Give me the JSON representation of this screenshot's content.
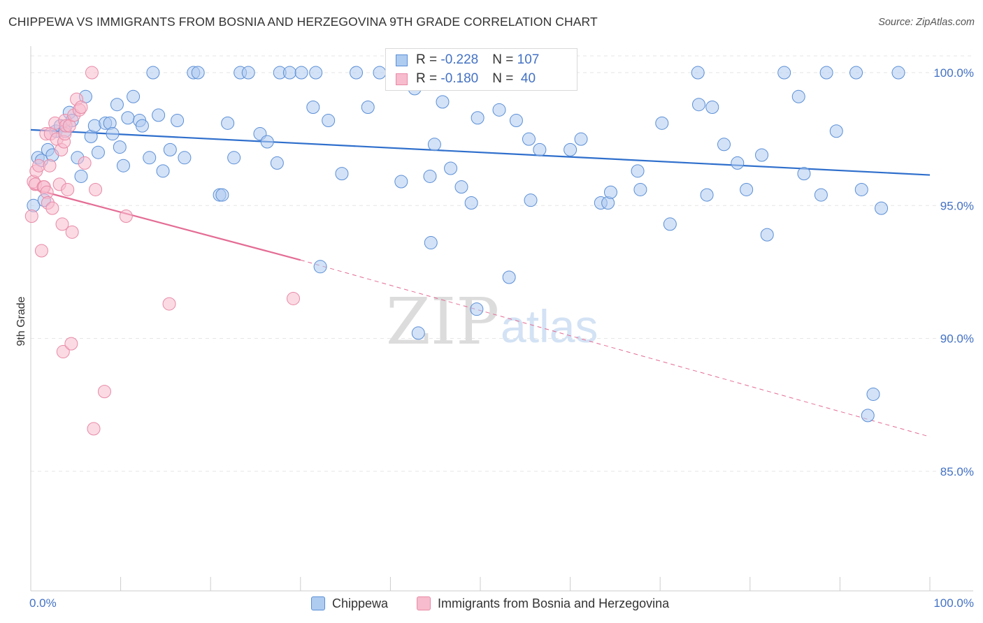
{
  "title": "CHIPPEWA VS IMMIGRANTS FROM BOSNIA AND HERZEGOVINA 9TH GRADE CORRELATION CHART",
  "source": "Source: ZipAtlas.com",
  "watermark": {
    "zip": "ZIP",
    "atlas": "atlas"
  },
  "legend_stats": [
    {
      "r_label": "R = ",
      "r_value": "-0.228",
      "n_label": "N = ",
      "n_value": "107",
      "color": "#aecbf0",
      "border": "#5b8fd6"
    },
    {
      "r_label": "R = ",
      "r_value": "-0.180",
      "n_label": "N = ",
      "n_value": " 40",
      "color": "#f7bccd",
      "border": "#e88aa6"
    }
  ],
  "chart_data": {
    "type": "scatter",
    "title": "CHIPPEWA VS IMMIGRANTS FROM BOSNIA AND HERZEGOVINA 9TH GRADE CORRELATION CHART",
    "xlabel": "",
    "ylabel": "9th Grade",
    "xlim": [
      0,
      100
    ],
    "ylim": [
      80.5,
      101.0
    ],
    "x_tick_labels": [
      "0.0%",
      "100.0%"
    ],
    "y_ticks": [
      85.0,
      90.0,
      95.0,
      100.0
    ],
    "y_tick_labels": [
      "85.0%",
      "90.0%",
      "95.0%",
      "100.0%"
    ],
    "grid": true,
    "legend_position": "top-center",
    "series": [
      {
        "name": "Chippewa",
        "color": "#aecbf0",
        "edge": "#5b8fd6",
        "trend": {
          "x": [
            0,
            100
          ],
          "y": [
            97.85,
            96.15
          ],
          "color": "#2f6fcc"
        },
        "points": [
          [
            0.3,
            95.0
          ],
          [
            0.8,
            96.8
          ],
          [
            1.2,
            96.7
          ],
          [
            1.5,
            95.2
          ],
          [
            1.9,
            97.1
          ],
          [
            2.4,
            96.9
          ],
          [
            2.8,
            97.8
          ],
          [
            3.3,
            98.0
          ],
          [
            3.8,
            97.8
          ],
          [
            4.3,
            98.5
          ],
          [
            4.6,
            98.2
          ],
          [
            5.2,
            96.8
          ],
          [
            5.6,
            96.1
          ],
          [
            6.1,
            99.1
          ],
          [
            6.7,
            97.6
          ],
          [
            7.1,
            98.0
          ],
          [
            7.5,
            97.0
          ],
          [
            8.3,
            98.1
          ],
          [
            8.8,
            98.1
          ],
          [
            9.1,
            97.7
          ],
          [
            9.6,
            98.8
          ],
          [
            9.9,
            97.2
          ],
          [
            10.3,
            96.5
          ],
          [
            10.8,
            98.3
          ],
          [
            11.4,
            99.1
          ],
          [
            12.1,
            98.2
          ],
          [
            12.4,
            98.0
          ],
          [
            13.2,
            96.8
          ],
          [
            13.6,
            100.0
          ],
          [
            14.2,
            98.4
          ],
          [
            14.7,
            96.3
          ],
          [
            15.5,
            97.1
          ],
          [
            16.3,
            98.2
          ],
          [
            17.1,
            96.8
          ],
          [
            18.1,
            100.0
          ],
          [
            18.6,
            100.0
          ],
          [
            21.0,
            95.4
          ],
          [
            21.3,
            95.4
          ],
          [
            21.9,
            98.1
          ],
          [
            22.6,
            96.8
          ],
          [
            23.3,
            100.0
          ],
          [
            24.2,
            100.0
          ],
          [
            25.5,
            97.7
          ],
          [
            26.3,
            97.4
          ],
          [
            27.4,
            96.6
          ],
          [
            27.7,
            100.0
          ],
          [
            28.8,
            100.0
          ],
          [
            30.1,
            100.0
          ],
          [
            31.4,
            98.7
          ],
          [
            31.7,
            100.0
          ],
          [
            32.2,
            92.7
          ],
          [
            33.1,
            98.2
          ],
          [
            34.6,
            96.2
          ],
          [
            36.2,
            100.0
          ],
          [
            37.5,
            98.7
          ],
          [
            38.8,
            100.0
          ],
          [
            41.2,
            95.9
          ],
          [
            42.3,
            100.0
          ],
          [
            42.7,
            99.4
          ],
          [
            43.1,
            90.2
          ],
          [
            44.4,
            96.1
          ],
          [
            44.5,
            93.6
          ],
          [
            44.9,
            97.3
          ],
          [
            45.8,
            98.9
          ],
          [
            46.7,
            96.4
          ],
          [
            47.9,
            95.7
          ],
          [
            49.0,
            95.1
          ],
          [
            49.7,
            98.3
          ],
          [
            49.6,
            91.1
          ],
          [
            51.6,
            99.9
          ],
          [
            52.1,
            98.6
          ],
          [
            53.2,
            92.3
          ],
          [
            54.0,
            98.2
          ],
          [
            55.4,
            97.5
          ],
          [
            55.6,
            95.2
          ],
          [
            56.6,
            97.1
          ],
          [
            58.1,
            100.0
          ],
          [
            60.0,
            97.1
          ],
          [
            61.2,
            97.5
          ],
          [
            63.4,
            95.1
          ],
          [
            64.2,
            95.1
          ],
          [
            64.5,
            95.5
          ],
          [
            67.5,
            96.3
          ],
          [
            67.8,
            95.6
          ],
          [
            70.2,
            98.1
          ],
          [
            71.1,
            94.3
          ],
          [
            74.2,
            100.0
          ],
          [
            74.3,
            98.8
          ],
          [
            75.2,
            95.4
          ],
          [
            75.8,
            98.7
          ],
          [
            77.1,
            97.3
          ],
          [
            78.6,
            96.6
          ],
          [
            79.6,
            95.6
          ],
          [
            81.3,
            96.9
          ],
          [
            81.9,
            93.9
          ],
          [
            83.8,
            100.0
          ],
          [
            85.4,
            99.1
          ],
          [
            86.0,
            96.2
          ],
          [
            87.9,
            95.4
          ],
          [
            88.5,
            100.0
          ],
          [
            89.6,
            97.8
          ],
          [
            91.8,
            100.0
          ],
          [
            92.4,
            95.6
          ],
          [
            93.1,
            87.1
          ],
          [
            93.7,
            87.9
          ],
          [
            94.6,
            94.9
          ],
          [
            96.5,
            100.0
          ]
        ]
      },
      {
        "name": "Immigrants from Bosnia and Herzegovina",
        "color": "#f7bccd",
        "edge": "#e88aa6",
        "trend": {
          "x": [
            0,
            30
          ],
          "y": [
            95.65,
            92.95
          ],
          "color": "#e46c95"
        },
        "trend_extension": {
          "x": [
            30,
            100
          ],
          "y": [
            92.95,
            86.3
          ]
        },
        "points": [
          [
            0.1,
            94.6
          ],
          [
            0.3,
            95.9
          ],
          [
            0.5,
            95.8
          ],
          [
            0.6,
            96.3
          ],
          [
            0.9,
            96.5
          ],
          [
            1.2,
            93.3
          ],
          [
            1.4,
            95.7
          ],
          [
            1.5,
            95.7
          ],
          [
            1.7,
            97.7
          ],
          [
            1.8,
            95.5
          ],
          [
            1.9,
            95.1
          ],
          [
            2.1,
            96.5
          ],
          [
            2.2,
            97.7
          ],
          [
            2.4,
            94.9
          ],
          [
            2.7,
            98.1
          ],
          [
            2.9,
            97.5
          ],
          [
            3.2,
            95.8
          ],
          [
            3.4,
            97.1
          ],
          [
            3.5,
            94.3
          ],
          [
            3.7,
            97.4
          ],
          [
            3.8,
            98.2
          ],
          [
            3.6,
            89.5
          ],
          [
            3.8,
            97.7
          ],
          [
            3.9,
            98.0
          ],
          [
            4.1,
            95.6
          ],
          [
            4.3,
            98.0
          ],
          [
            4.5,
            89.8
          ],
          [
            4.6,
            94.0
          ],
          [
            4.8,
            98.4
          ],
          [
            5.1,
            99.0
          ],
          [
            5.4,
            98.6
          ],
          [
            5.6,
            98.7
          ],
          [
            6.0,
            96.6
          ],
          [
            6.8,
            100.0
          ],
          [
            7.0,
            86.6
          ],
          [
            7.2,
            95.6
          ],
          [
            8.2,
            88.0
          ],
          [
            10.6,
            94.6
          ],
          [
            15.4,
            91.3
          ],
          [
            29.2,
            91.5
          ]
        ]
      }
    ]
  },
  "bottom_legend": [
    "Chippewa",
    "Immigrants from Bosnia and Herzegovina"
  ]
}
